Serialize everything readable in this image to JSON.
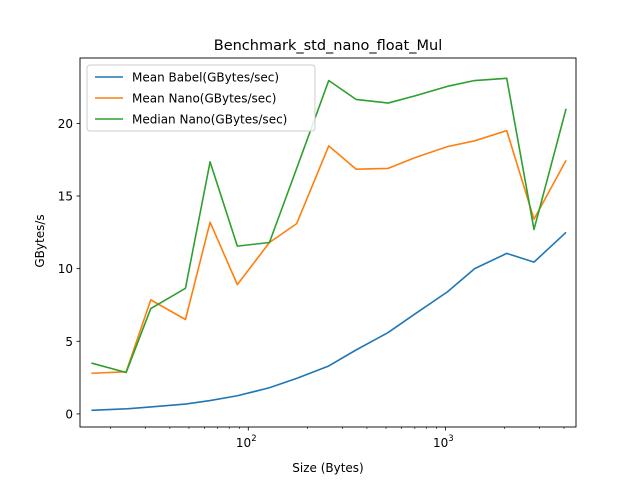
{
  "chart_data": {
    "type": "line",
    "title": "Benchmark_std_nano_float_Mul",
    "xlabel": "Size (Bytes)",
    "ylabel": "GBytes/s",
    "xscale": "log",
    "xlim": [
      14,
      4600
    ],
    "ylim": [
      -0.9,
      24.5
    ],
    "grid": false,
    "legend_position": "top-left",
    "x": [
      16,
      24,
      32,
      48,
      64,
      88,
      128,
      176,
      256,
      352,
      512,
      704,
      1024,
      1408,
      2048,
      2816,
      4096
    ],
    "x_ticks": [
      {
        "value": 100,
        "base": "10",
        "exp": "2"
      },
      {
        "value": 1000,
        "base": "10",
        "exp": "3"
      }
    ],
    "y_ticks": [
      0,
      5,
      10,
      15,
      20
    ],
    "series": [
      {
        "name": "Mean Babel(GBytes/sec)",
        "color": "#1f77b4",
        "values": [
          0.25,
          0.35,
          0.48,
          0.68,
          0.92,
          1.25,
          1.8,
          2.45,
          3.3,
          4.4,
          5.6,
          6.9,
          8.4,
          10.0,
          11.05,
          10.45,
          12.5
        ]
      },
      {
        "name": "Mean Nano(GBytes/sec)",
        "color": "#ff7f0e",
        "values": [
          2.8,
          2.9,
          7.85,
          6.5,
          13.2,
          8.9,
          11.8,
          13.1,
          18.45,
          16.85,
          16.9,
          17.65,
          18.4,
          18.8,
          19.5,
          13.4,
          17.45
        ]
      },
      {
        "name": "Median Nano(GBytes/sec)",
        "color": "#2ca02c",
        "values": [
          3.5,
          2.85,
          7.25,
          8.65,
          17.35,
          11.55,
          11.8,
          16.9,
          22.95,
          21.65,
          21.4,
          21.9,
          22.55,
          22.95,
          23.1,
          12.7,
          21.0
        ]
      }
    ]
  }
}
